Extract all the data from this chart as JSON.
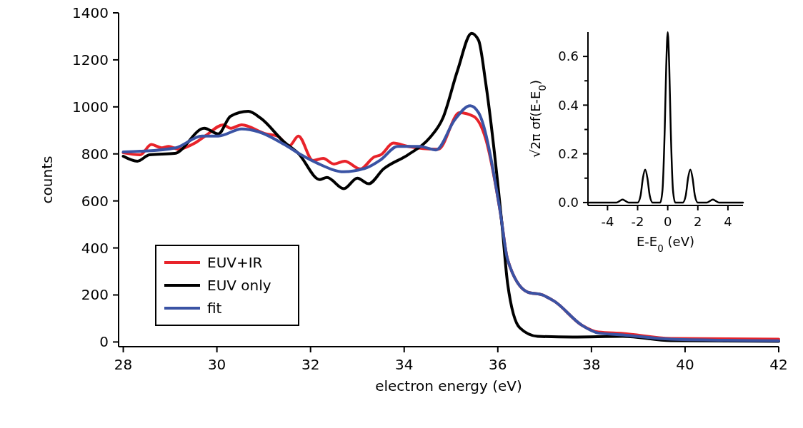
{
  "chart_data": [
    {
      "type": "line",
      "xlabel": "electron energy (eV)",
      "ylabel": "counts",
      "xlim": [
        27.9,
        42
      ],
      "ylim": [
        -20,
        1400
      ],
      "xticks": [
        28,
        30,
        32,
        34,
        36,
        38,
        40,
        42
      ],
      "yticks": [
        0,
        200,
        400,
        600,
        800,
        1000,
        1200,
        1400
      ],
      "grid": false,
      "legend": "bottom left",
      "marker": "none",
      "line_style": "solid",
      "series": [
        {
          "name": "EUV+IR",
          "color": "#e8232a",
          "x": [
            28,
            28.36,
            28.6,
            28.82,
            28.97,
            29.17,
            29.53,
            29.77,
            30.14,
            30.29,
            30.53,
            31.05,
            31.29,
            31.55,
            31.74,
            32.05,
            32.27,
            32.5,
            32.73,
            33.06,
            33.36,
            33.5,
            33.77,
            34.08,
            34.73,
            35.18,
            35.48,
            35.74,
            36.05,
            36.21,
            36.64,
            36.95,
            37.21,
            37.79,
            38.15,
            38.67,
            39.7,
            42
          ],
          "values": [
            805,
            796,
            840,
            826,
            832,
            820,
            846,
            879,
            924,
            909,
            924,
            885,
            876,
            835,
            876,
            772,
            781,
            757,
            769,
            736,
            787,
            796,
            846,
            832,
            820,
            975,
            960,
            865,
            556,
            350,
            212,
            200,
            173,
            72,
            42,
            36,
            15,
            12
          ]
        },
        {
          "name": "EUV only",
          "color": "#000000",
          "x": [
            28,
            28.3,
            28.56,
            29.1,
            29.73,
            30.03,
            30.29,
            30.67,
            30.94,
            31.44,
            31.74,
            32.2,
            32.35,
            32.71,
            33.0,
            33.24,
            33.56,
            34.08,
            34.53,
            34.83,
            35.14,
            35.44,
            35.59,
            35.74,
            36.09,
            36.21,
            36.47,
            36.85,
            37.6,
            38.67,
            39.7,
            42
          ],
          "values": [
            790,
            769,
            796,
            802,
            909,
            885,
            960,
            981,
            951,
            850,
            802,
            691,
            700,
            652,
            697,
            673,
            736,
            796,
            865,
            954,
            1155,
            1313,
            1283,
            1104,
            497,
            248,
            60,
            24,
            21,
            24,
            6,
            3
          ]
        },
        {
          "name": "fit",
          "color": "#3a53a4",
          "x": [
            28,
            28.36,
            29.12,
            29.68,
            30.03,
            30.53,
            30.89,
            31.44,
            31.8,
            32.15,
            32.71,
            33.21,
            33.5,
            33.86,
            34.32,
            34.68,
            35.08,
            35.41,
            35.59,
            36.05,
            36.21,
            36.64,
            36.95,
            37.21,
            37.79,
            38.15,
            38.67,
            39.7,
            42
          ],
          "values": [
            808,
            811,
            826,
            876,
            876,
            906,
            894,
            840,
            796,
            760,
            724,
            742,
            775,
            832,
            832,
            817,
            945,
            1005,
            975,
            556,
            350,
            212,
            200,
            173,
            72,
            38,
            30,
            12,
            5
          ]
        }
      ]
    },
    {
      "type": "line",
      "xlabel": "E-E$_{0}$ (eV)",
      "ylabel": "√2π σf(E-E$_{0}$)",
      "xlim": [
        -5.3,
        5
      ],
      "ylim": [
        -0.012,
        0.7
      ],
      "xticks": [
        -4,
        -2,
        0,
        2,
        4
      ],
      "yticks": [
        {
          "value": 0,
          "label": "0.0"
        },
        {
          "value": 0.1,
          "label": null
        },
        0.2,
        {
          "value": 0.3,
          "label": null
        },
        0.4,
        {
          "value": 0.5,
          "label": null
        },
        0.6
      ],
      "grid": false,
      "legend": false,
      "marker": "none",
      "line_style": "solid",
      "series": [
        {
          "color": "#000000",
          "x": [
            -5.2,
            -3.4,
            -3.2,
            -3.0,
            -2.8,
            -2.6,
            -2.0,
            -1.8,
            -1.65,
            -1.5,
            -1.35,
            -1.2,
            -1.0,
            -0.5,
            -0.35,
            -0.2,
            -0.1,
            0,
            0.1,
            0.2,
            0.35,
            0.5,
            1.0,
            1.2,
            1.35,
            1.5,
            1.65,
            1.8,
            2.0,
            2.6,
            2.8,
            3.0,
            3.2,
            3.4,
            5.0
          ],
          "values": [
            0,
            0,
            0.006,
            0.012,
            0.006,
            0,
            0,
            0.03,
            0.1,
            0.135,
            0.1,
            0.03,
            0,
            0,
            0.05,
            0.3,
            0.56,
            0.7,
            0.56,
            0.3,
            0.05,
            0,
            0,
            0.03,
            0.1,
            0.135,
            0.1,
            0.03,
            0,
            0,
            0.006,
            0.012,
            0.006,
            0,
            0
          ]
        }
      ]
    }
  ]
}
